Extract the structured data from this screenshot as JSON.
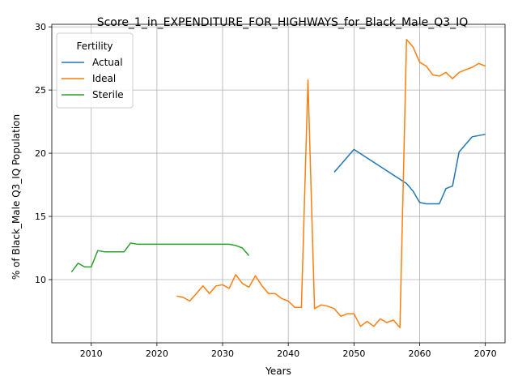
{
  "chart_data": {
    "type": "line",
    "title": "Score_1_in_EXPENDITURE_FOR_HIGHWAYS_for_Black_Male_Q3_IQ",
    "xlabel": "Years",
    "ylabel": "% of Black_Male Q3_IQ Population",
    "xlim": [
      2004,
      2073
    ],
    "ylim": [
      5.0,
      30.2
    ],
    "xticks": [
      2010,
      2020,
      2030,
      2040,
      2050,
      2060,
      2070
    ],
    "yticks": [
      10,
      15,
      20,
      25,
      30
    ],
    "grid": true,
    "legend": {
      "title": "Fertility",
      "placement": "upper-left"
    },
    "series": [
      {
        "name": "Actual",
        "color": "#1f77b4",
        "x": [
          2047,
          2050,
          2058,
          2059,
          2060,
          2061,
          2062,
          2063,
          2064,
          2065,
          2066,
          2068,
          2070
        ],
        "y": [
          18.5,
          20.3,
          17.6,
          17.0,
          16.1,
          16.0,
          16.0,
          16.0,
          17.2,
          17.4,
          20.1,
          21.3,
          21.5
        ]
      },
      {
        "name": "Ideal",
        "color": "#ff7f0e",
        "x": [
          2023,
          2024,
          2025,
          2026,
          2027,
          2028,
          2029,
          2030,
          2031,
          2032,
          2033,
          2034,
          2035,
          2036,
          2037,
          2038,
          2039,
          2040,
          2041,
          2042,
          2043,
          2044,
          2045,
          2046,
          2047,
          2048,
          2049,
          2050,
          2051,
          2052,
          2053,
          2054,
          2055,
          2056,
          2057,
          2058,
          2059,
          2060,
          2061,
          2062,
          2063,
          2064,
          2065,
          2066,
          2067,
          2068,
          2069,
          2070
        ],
        "y": [
          8.7,
          8.6,
          8.3,
          8.9,
          9.5,
          8.9,
          9.5,
          9.6,
          9.3,
          10.4,
          9.7,
          9.4,
          10.3,
          9.5,
          8.9,
          8.9,
          8.5,
          8.3,
          7.8,
          7.8,
          25.8,
          7.7,
          8.0,
          7.9,
          7.7,
          7.1,
          7.3,
          7.3,
          6.3,
          6.7,
          6.3,
          6.9,
          6.6,
          6.8,
          6.2,
          29.0,
          28.4,
          27.2,
          26.9,
          26.2,
          26.1,
          26.4,
          25.9,
          26.4,
          26.6,
          26.8,
          27.1,
          26.9
        ]
      },
      {
        "name": "Sterile",
        "color": "#2ca02c",
        "x": [
          2007,
          2008,
          2009,
          2010,
          2011,
          2012,
          2013,
          2014,
          2015,
          2016,
          2017,
          2018,
          2019,
          2020,
          2021,
          2022,
          2023,
          2024,
          2025,
          2026,
          2027,
          2028,
          2029,
          2030,
          2031,
          2032,
          2033,
          2034
        ],
        "y": [
          10.6,
          11.3,
          11.0,
          11.0,
          12.3,
          12.2,
          12.2,
          12.2,
          12.2,
          12.9,
          12.8,
          12.8,
          12.8,
          12.8,
          12.8,
          12.8,
          12.8,
          12.8,
          12.8,
          12.8,
          12.8,
          12.8,
          12.8,
          12.8,
          12.8,
          12.7,
          12.5,
          11.9
        ]
      }
    ]
  }
}
